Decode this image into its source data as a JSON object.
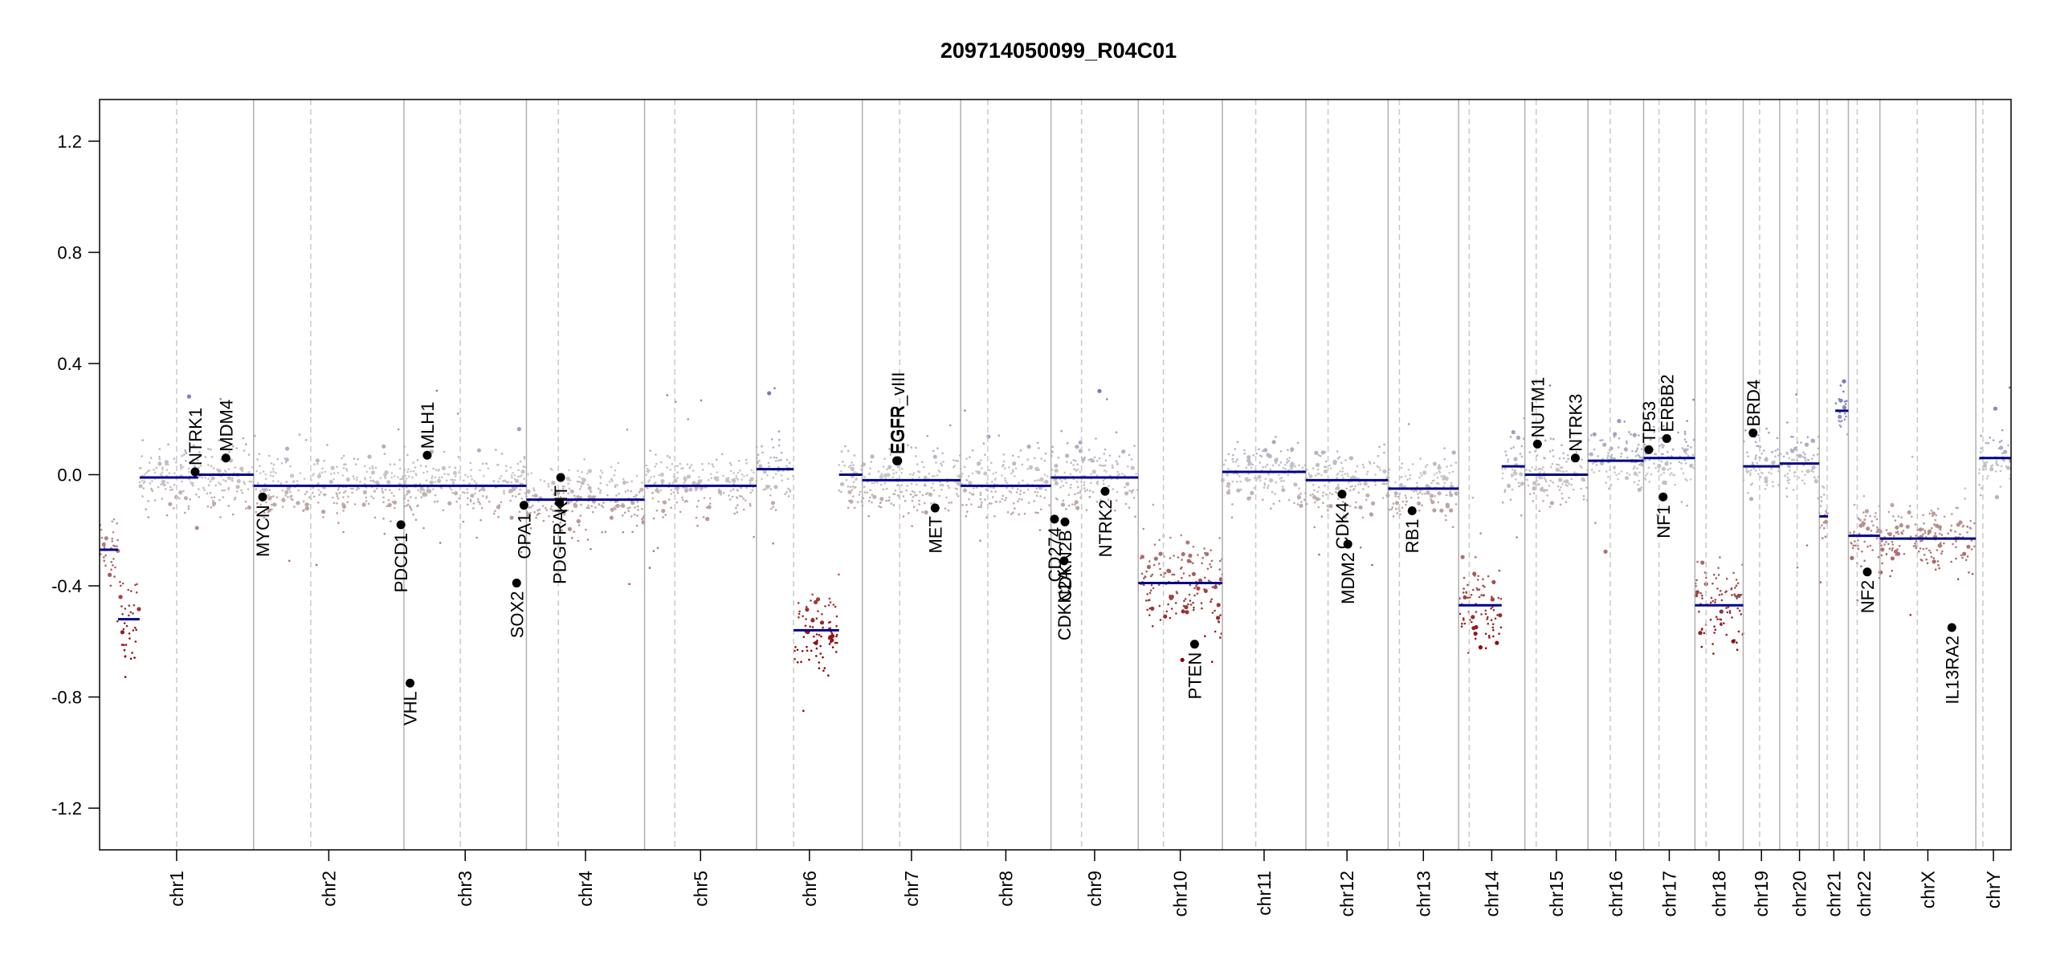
{
  "chart_data": {
    "type": "scatter",
    "title": "209714050099_R04C01",
    "xlabel": "",
    "ylabel": "",
    "ylim": [
      -1.35,
      1.35
    ],
    "yticks": [
      -1.2,
      -0.8,
      -0.4,
      0.0,
      0.4,
      0.8,
      1.2
    ],
    "ytick_labels": [
      "-1.2",
      "-0.8",
      "-0.4",
      "0.0",
      "0.4",
      "0.8",
      "1.2"
    ],
    "grid": false,
    "colors": {
      "gain": "#8f8fc8",
      "neutral": "#c8c8c8",
      "loss": "#8b0000",
      "segment": "#00008b",
      "gene": "#000000",
      "divider": "#b0b0b0"
    },
    "chromosomes": [
      {
        "name": "chr1",
        "length": 249,
        "centromere": 0.5
      },
      {
        "name": "chr2",
        "length": 243,
        "centromere": 0.38
      },
      {
        "name": "chr3",
        "length": 198,
        "centromere": 0.46
      },
      {
        "name": "chr4",
        "length": 191,
        "centromere": 0.27
      },
      {
        "name": "chr5",
        "length": 181,
        "centromere": 0.27
      },
      {
        "name": "chr6",
        "length": 171,
        "centromere": 0.35
      },
      {
        "name": "chr7",
        "length": 159,
        "centromere": 0.38
      },
      {
        "name": "chr8",
        "length": 146,
        "centromere": 0.3
      },
      {
        "name": "chr9",
        "length": 141,
        "centromere": 0.35
      },
      {
        "name": "chr10",
        "length": 136,
        "centromere": 0.3
      },
      {
        "name": "chr11",
        "length": 135,
        "centromere": 0.4
      },
      {
        "name": "chr12",
        "length": 133,
        "centromere": 0.27
      },
      {
        "name": "chr13",
        "length": 114,
        "centromere": 0.16
      },
      {
        "name": "chr14",
        "length": 107,
        "centromere": 0.16
      },
      {
        "name": "chr15",
        "length": 102,
        "centromere": 0.18
      },
      {
        "name": "chr16",
        "length": 90,
        "centromere": 0.4
      },
      {
        "name": "chr17",
        "length": 83,
        "centromere": 0.3
      },
      {
        "name": "chr18",
        "length": 78,
        "centromere": 0.23
      },
      {
        "name": "chr19",
        "length": 59,
        "centromere": 0.45
      },
      {
        "name": "chr20",
        "length": 64,
        "centromere": 0.44
      },
      {
        "name": "chr21",
        "length": 47,
        "centromere": 0.27
      },
      {
        "name": "chr22",
        "length": 51,
        "centromere": 0.28
      },
      {
        "name": "chrX",
        "length": 155,
        "centromere": 0.39
      },
      {
        "name": "chrY",
        "length": 57,
        "centromere": 0.2
      }
    ],
    "segments": [
      {
        "chr": "chr1",
        "start": 0.0,
        "end": 0.12,
        "value": -0.27
      },
      {
        "chr": "chr1",
        "start": 0.12,
        "end": 0.26,
        "value": -0.52
      },
      {
        "chr": "chr1",
        "start": 0.26,
        "end": 0.64,
        "value": -0.01
      },
      {
        "chr": "chr1",
        "start": 0.64,
        "end": 1.0,
        "value": 0.0
      },
      {
        "chr": "chr2",
        "start": 0.0,
        "end": 1.0,
        "value": -0.04
      },
      {
        "chr": "chr3",
        "start": 0.0,
        "end": 1.0,
        "value": -0.04
      },
      {
        "chr": "chr4",
        "start": 0.0,
        "end": 1.0,
        "value": -0.09
      },
      {
        "chr": "chr5",
        "start": 0.0,
        "end": 1.0,
        "value": -0.04
      },
      {
        "chr": "chr6",
        "start": 0.0,
        "end": 0.35,
        "value": 0.02
      },
      {
        "chr": "chr6",
        "start": 0.35,
        "end": 0.78,
        "value": -0.56
      },
      {
        "chr": "chr6",
        "start": 0.78,
        "end": 1.0,
        "value": 0.0
      },
      {
        "chr": "chr7",
        "start": 0.0,
        "end": 1.0,
        "value": -0.02
      },
      {
        "chr": "chr8",
        "start": 0.0,
        "end": 1.0,
        "value": -0.04
      },
      {
        "chr": "chr9",
        "start": 0.0,
        "end": 1.0,
        "value": -0.01
      },
      {
        "chr": "chr10",
        "start": 0.0,
        "end": 1.0,
        "value": -0.39
      },
      {
        "chr": "chr11",
        "start": 0.0,
        "end": 1.0,
        "value": 0.01
      },
      {
        "chr": "chr12",
        "start": 0.0,
        "end": 1.0,
        "value": -0.02
      },
      {
        "chr": "chr13",
        "start": 0.0,
        "end": 1.0,
        "value": -0.05
      },
      {
        "chr": "chr14",
        "start": 0.0,
        "end": 0.65,
        "value": -0.47
      },
      {
        "chr": "chr14",
        "start": 0.65,
        "end": 1.0,
        "value": 0.03
      },
      {
        "chr": "chr15",
        "start": 0.0,
        "end": 1.0,
        "value": 0.0
      },
      {
        "chr": "chr16",
        "start": 0.0,
        "end": 1.0,
        "value": 0.05
      },
      {
        "chr": "chr17",
        "start": 0.0,
        "end": 1.0,
        "value": 0.06
      },
      {
        "chr": "chr18",
        "start": 0.0,
        "end": 1.0,
        "value": -0.47
      },
      {
        "chr": "chr19",
        "start": 0.0,
        "end": 1.0,
        "value": 0.03
      },
      {
        "chr": "chr20",
        "start": 0.0,
        "end": 1.0,
        "value": 0.04
      },
      {
        "chr": "chr21",
        "start": 0.0,
        "end": 0.3,
        "value": -0.15
      },
      {
        "chr": "chr21",
        "start": 0.55,
        "end": 1.0,
        "value": 0.23
      },
      {
        "chr": "chr22",
        "start": 0.0,
        "end": 1.0,
        "value": -0.22
      },
      {
        "chr": "chrX",
        "start": 0.0,
        "end": 1.0,
        "value": -0.23
      },
      {
        "chr": "chrY",
        "start": 0.1,
        "end": 1.0,
        "value": 0.06
      }
    ],
    "genes": [
      {
        "name": "NTRK1",
        "chr": "chr1",
        "pos": 0.62,
        "value": 0.01
      },
      {
        "name": "MDM4",
        "chr": "chr1",
        "pos": 0.82,
        "value": 0.06
      },
      {
        "name": "MYCN",
        "chr": "chr2",
        "pos": 0.06,
        "value": -0.08
      },
      {
        "name": "PDCD1",
        "chr": "chr2",
        "pos": 0.98,
        "value": -0.18
      },
      {
        "name": "VHL",
        "chr": "chr3",
        "pos": 0.05,
        "value": -0.75
      },
      {
        "name": "MLH1",
        "chr": "chr3",
        "pos": 0.19,
        "value": 0.07
      },
      {
        "name": "SOX2",
        "chr": "chr3",
        "pos": 0.92,
        "value": -0.39
      },
      {
        "name": "OPA1",
        "chr": "chr3",
        "pos": 0.98,
        "value": -0.11
      },
      {
        "name": "PDGFRA",
        "chr": "chr4",
        "pos": 0.28,
        "value": -0.1
      },
      {
        "name": "KIT",
        "chr": "chr4",
        "pos": 0.29,
        "value": -0.01
      },
      {
        "name": "EGFR",
        "chr": "chr7",
        "pos": 0.35,
        "value": 0.05
      },
      {
        "name": "EGFR_vIII",
        "chr": "chr7",
        "pos": 0.36,
        "value": 0.05
      },
      {
        "name": "MET",
        "chr": "chr7",
        "pos": 0.74,
        "value": -0.12
      },
      {
        "name": "CD274",
        "chr": "chr9",
        "pos": 0.04,
        "value": -0.16
      },
      {
        "name": "CDKN2A",
        "chr": "chr9",
        "pos": 0.15,
        "value": -0.31
      },
      {
        "name": "CDKN2B",
        "chr": "chr9",
        "pos": 0.16,
        "value": -0.17
      },
      {
        "name": "NTRK2",
        "chr": "chr9",
        "pos": 0.62,
        "value": -0.06
      },
      {
        "name": "PTEN",
        "chr": "chr10",
        "pos": 0.67,
        "value": -0.61
      },
      {
        "name": "MDM2",
        "chr": "chr12",
        "pos": 0.51,
        "value": -0.25
      },
      {
        "name": "CDK4",
        "chr": "chr12",
        "pos": 0.44,
        "value": -0.07
      },
      {
        "name": "RB1",
        "chr": "chr13",
        "pos": 0.34,
        "value": -0.13
      },
      {
        "name": "NUTM1",
        "chr": "chr15",
        "pos": 0.2,
        "value": 0.11
      },
      {
        "name": "NTRK3",
        "chr": "chr15",
        "pos": 0.8,
        "value": 0.06
      },
      {
        "name": "TP53",
        "chr": "chr17",
        "pos": 0.1,
        "value": 0.09
      },
      {
        "name": "NF1",
        "chr": "chr17",
        "pos": 0.38,
        "value": -0.08
      },
      {
        "name": "ERBB2",
        "chr": "chr17",
        "pos": 0.45,
        "value": 0.13
      },
      {
        "name": "BRD4",
        "chr": "chr19",
        "pos": 0.27,
        "value": 0.15
      },
      {
        "name": "NF2",
        "chr": "chr22",
        "pos": 0.6,
        "value": -0.35
      },
      {
        "name": "IL13RA2",
        "chr": "chrX",
        "pos": 0.75,
        "value": -0.55
      }
    ]
  }
}
